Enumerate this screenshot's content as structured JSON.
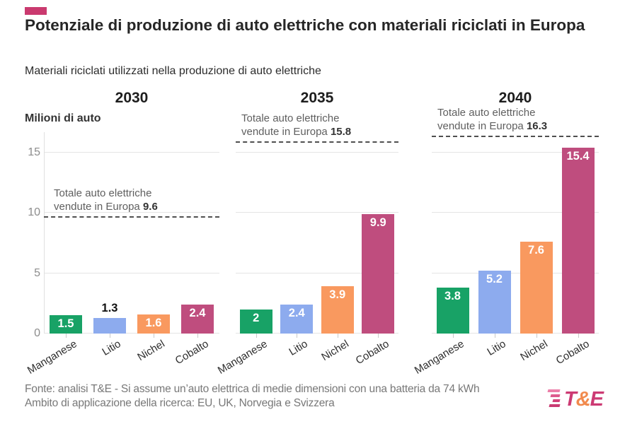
{
  "header": {
    "title": "Potenziale di produzione di auto elettriche con materiali riciclati in Europa",
    "subtitle": "Materiali riciclati utilizzati nella produzione di auto elettriche",
    "accent_color": "#ca3a6f"
  },
  "chart_data": {
    "type": "bar",
    "ylabel": "Milioni di auto",
    "yticks": [
      0,
      5,
      10,
      15
    ],
    "ylim": [
      0,
      16.7
    ],
    "grid": true,
    "categories": [
      "Manganese",
      "Litio",
      "Nichel",
      "Cobalto"
    ],
    "category_colors": [
      "#18a266",
      "#8dabee",
      "#f9995f",
      "#bf4d7e"
    ],
    "panels": [
      {
        "title": "2030",
        "values": [
          1.5,
          1.3,
          1.6,
          2.4
        ],
        "value_labels": [
          "1.5",
          "1.3",
          "1.6",
          "2.4"
        ],
        "label_outside": [
          false,
          true,
          false,
          false
        ],
        "reference_line": {
          "value": 9.6,
          "line1": "Totale auto elettriche",
          "line2": "vendute in Europa",
          "bold_value": "9.6"
        }
      },
      {
        "title": "2035",
        "values": [
          2,
          2.4,
          3.9,
          9.9
        ],
        "value_labels": [
          "2",
          "2.4",
          "3.9",
          "9.9"
        ],
        "label_outside": [
          false,
          false,
          false,
          false
        ],
        "reference_line": {
          "value": 15.8,
          "line1": "Totale auto elettriche",
          "line2": "vendute in Europa",
          "bold_value": "15.8"
        }
      },
      {
        "title": "2040",
        "values": [
          3.8,
          5.2,
          7.6,
          15.4
        ],
        "value_labels": [
          "3.8",
          "5.2",
          "7.6",
          "15.4"
        ],
        "label_outside": [
          false,
          false,
          false,
          false
        ],
        "reference_line": {
          "value": 16.3,
          "line1": "Totale auto elettriche",
          "line2": "vendute in Europa",
          "bold_value": "16.3"
        }
      }
    ],
    "dashed_line_color": "#4f4f4f",
    "gridline_color": "#e4e4e4"
  },
  "footer": {
    "line1": "Fonte: analisi T&E - Si assume un’auto elettrica di medie dimensioni con una batteria da 74 kWh",
    "line2": "Ambito di applicazione della ricerca: EU, UK, Norvegia e Svizzera",
    "logo": {
      "letters": [
        {
          "ch": "T",
          "color": "#cc3a73"
        },
        {
          "ch": "&",
          "color": "#f18a4d"
        },
        {
          "ch": "E",
          "color": "#cc3a73"
        }
      ],
      "stripe_colors": [
        "#ec7fa9",
        "#dd5b8d",
        "#d24279",
        "#c93a72"
      ]
    }
  }
}
